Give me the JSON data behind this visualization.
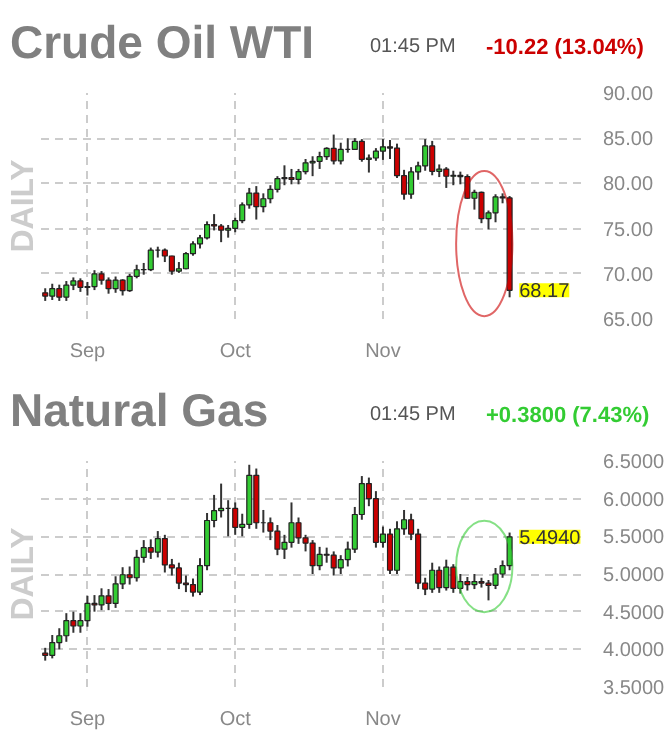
{
  "chart_data": [
    {
      "type": "candlestick",
      "title": "Crude Oil WTI",
      "ylabel": "DAILY",
      "annotations": [
        "01:45 PM",
        "-10.22 (13.04%)",
        "68.17"
      ],
      "categories": [
        null,
        null,
        null,
        null,
        null,
        null,
        "Sep",
        null,
        null,
        null,
        null,
        null,
        null,
        null,
        null,
        null,
        null,
        null,
        null,
        null,
        null,
        null,
        null,
        null,
        null,
        null,
        null,
        "Oct",
        null,
        null,
        null,
        null,
        null,
        null,
        null,
        null,
        null,
        null,
        null,
        null,
        null,
        null,
        null,
        null,
        null,
        null,
        null,
        null,
        "Nov",
        null,
        null,
        null,
        null,
        null,
        null,
        null,
        null,
        null,
        null,
        null,
        null,
        null,
        null,
        null,
        null,
        null,
        null
      ],
      "ohlc": [
        [
          67.9,
          68.4,
          67.0,
          67.54
        ],
        [
          67.54,
          68.9,
          67.1,
          68.36
        ],
        [
          68.36,
          68.8,
          67.0,
          67.42
        ],
        [
          67.42,
          69.2,
          67.0,
          68.74
        ],
        [
          68.74,
          69.6,
          68.2,
          69.21
        ],
        [
          69.21,
          69.5,
          68.0,
          68.5
        ],
        [
          68.5,
          69.1,
          67.6,
          68.59
        ],
        [
          68.59,
          70.4,
          68.2,
          69.99
        ],
        [
          69.99,
          70.3,
          68.8,
          69.29
        ],
        [
          69.29,
          69.6,
          67.8,
          68.35
        ],
        [
          68.35,
          69.7,
          67.9,
          69.3
        ],
        [
          69.3,
          69.4,
          67.6,
          68.14
        ],
        [
          68.14,
          70.0,
          68.0,
          69.72
        ],
        [
          69.72,
          71.0,
          69.5,
          70.45
        ],
        [
          70.45,
          71.2,
          69.9,
          70.46
        ],
        [
          70.46,
          72.9,
          70.3,
          72.61
        ],
        [
          72.61,
          73.0,
          71.8,
          72.61
        ],
        [
          72.61,
          72.8,
          71.3,
          71.97
        ],
        [
          71.97,
          72.0,
          69.9,
          70.29
        ],
        [
          70.29,
          71.3,
          70.1,
          70.56
        ],
        [
          70.56,
          72.4,
          70.5,
          72.23
        ],
        [
          72.23,
          73.6,
          72.0,
          73.3
        ],
        [
          73.3,
          74.3,
          72.8,
          73.98
        ],
        [
          73.98,
          75.8,
          73.8,
          75.45
        ],
        [
          75.45,
          76.6,
          74.8,
          75.29
        ],
        [
          75.29,
          75.5,
          73.5,
          74.83
        ],
        [
          74.83,
          75.4,
          74.0,
          75.03
        ],
        [
          75.03,
          76.2,
          74.6,
          75.88
        ],
        [
          75.88,
          77.9,
          75.6,
          77.62
        ],
        [
          77.62,
          79.5,
          77.2,
          78.93
        ],
        [
          78.93,
          79.7,
          76.0,
          77.43
        ],
        [
          77.43,
          78.9,
          76.8,
          78.3
        ],
        [
          78.3,
          79.8,
          77.8,
          79.35
        ],
        [
          79.35,
          80.8,
          79.0,
          80.52
        ],
        [
          80.52,
          82.0,
          79.8,
          80.64
        ],
        [
          80.64,
          81.6,
          79.9,
          80.44
        ],
        [
          80.44,
          81.6,
          79.9,
          81.31
        ],
        [
          81.31,
          82.7,
          81.0,
          82.28
        ],
        [
          82.28,
          83.0,
          80.8,
          82.44
        ],
        [
          82.44,
          83.5,
          81.6,
          82.96
        ],
        [
          82.96,
          84.0,
          82.6,
          83.87
        ],
        [
          83.87,
          85.4,
          82.1,
          82.5
        ],
        [
          82.5,
          84.5,
          82.1,
          83.76
        ],
        [
          83.76,
          85.0,
          83.4,
          83.76
        ],
        [
          83.76,
          85.0,
          83.7,
          84.65
        ],
        [
          84.65,
          84.9,
          82.4,
          82.66
        ],
        [
          82.66,
          83.2,
          81.2,
          82.81
        ],
        [
          82.81,
          83.9,
          82.5,
          83.57
        ],
        [
          83.57,
          84.9,
          82.6,
          84.05
        ],
        [
          84.05,
          84.8,
          82.7,
          83.91
        ],
        [
          83.91,
          84.4,
          80.6,
          80.86
        ],
        [
          80.86,
          81.5,
          78.2,
          78.81
        ],
        [
          78.81,
          81.8,
          78.3,
          81.27
        ],
        [
          81.27,
          82.4,
          80.4,
          81.93
        ],
        [
          81.93,
          84.9,
          81.4,
          84.15
        ],
        [
          84.15,
          84.7,
          80.9,
          81.34
        ],
        [
          81.34,
          82.1,
          80.7,
          81.59
        ],
        [
          81.59,
          81.8,
          79.5,
          80.79
        ],
        [
          80.79,
          81.4,
          79.8,
          80.88
        ],
        [
          80.88,
          81.3,
          79.9,
          80.76
        ],
        [
          80.76,
          81.0,
          78.3,
          78.36
        ],
        [
          78.36,
          79.3,
          77.1,
          79.01
        ],
        [
          79.01,
          79.1,
          75.6,
          76.1
        ],
        [
          76.1,
          77.0,
          74.9,
          76.75
        ],
        [
          76.75,
          78.8,
          75.7,
          78.5
        ],
        [
          78.5,
          78.9,
          77.8,
          78.39
        ],
        [
          78.39,
          78.6,
          67.4,
          68.17
        ]
      ],
      "ylim": [
        65,
        90
      ],
      "yticks": [
        {
          "value": 65,
          "label": "65.00"
        },
        {
          "value": 70,
          "label": "70.00"
        },
        {
          "value": 75,
          "label": "75.00"
        },
        {
          "value": 80,
          "label": "80.00"
        },
        {
          "value": 85,
          "label": "85.00"
        },
        {
          "value": 90,
          "label": "90.00"
        }
      ],
      "grid": true
    },
    {
      "type": "candlestick",
      "title": "Natural Gas",
      "ylabel": "DAILY",
      "annotations": [
        "01:45 PM",
        "+0.3800 (7.43%)",
        "5.4940"
      ],
      "categories": [
        null,
        null,
        null,
        null,
        null,
        null,
        "Sep",
        null,
        null,
        null,
        null,
        null,
        null,
        null,
        null,
        null,
        null,
        null,
        null,
        null,
        null,
        null,
        null,
        null,
        null,
        null,
        null,
        "Oct",
        null,
        null,
        null,
        null,
        null,
        null,
        null,
        null,
        null,
        null,
        null,
        null,
        null,
        null,
        null,
        null,
        null,
        null,
        null,
        null,
        "Nov",
        null,
        null,
        null,
        null,
        null,
        null,
        null,
        null,
        null,
        null,
        null,
        null,
        null,
        null,
        null,
        null,
        null,
        null
      ],
      "ohlc": [
        [
          3.95,
          4.02,
          3.85,
          3.92
        ],
        [
          3.92,
          4.19,
          3.88,
          4.09
        ],
        [
          4.09,
          4.28,
          4.0,
          4.18
        ],
        [
          4.18,
          4.48,
          4.1,
          4.38
        ],
        [
          4.38,
          4.5,
          4.22,
          4.31
        ],
        [
          4.31,
          4.48,
          4.22,
          4.38
        ],
        [
          4.38,
          4.71,
          4.3,
          4.61
        ],
        [
          4.61,
          4.72,
          4.5,
          4.59
        ],
        [
          4.59,
          4.81,
          4.52,
          4.71
        ],
        [
          4.71,
          4.8,
          4.52,
          4.61
        ],
        [
          4.61,
          4.97,
          4.55,
          4.87
        ],
        [
          4.87,
          5.09,
          4.8,
          4.99
        ],
        [
          4.99,
          5.1,
          4.86,
          4.95
        ],
        [
          4.95,
          5.32,
          4.9,
          5.22
        ],
        [
          5.22,
          5.45,
          5.15,
          5.35
        ],
        [
          5.35,
          5.46,
          5.2,
          5.29
        ],
        [
          5.29,
          5.57,
          5.22,
          5.47
        ],
        [
          5.47,
          5.52,
          5.02,
          5.12
        ],
        [
          5.12,
          5.2,
          4.98,
          5.08
        ],
        [
          5.08,
          5.15,
          4.8,
          4.88
        ],
        [
          4.88,
          4.98,
          4.76,
          4.86
        ],
        [
          4.86,
          4.94,
          4.7,
          4.76
        ],
        [
          4.76,
          5.21,
          4.72,
          5.11
        ],
        [
          5.11,
          5.81,
          5.05,
          5.71
        ],
        [
          5.71,
          6.05,
          5.62,
          5.84
        ],
        [
          5.84,
          6.2,
          5.75,
          5.87
        ],
        [
          5.87,
          5.98,
          5.5,
          5.87
        ],
        [
          5.87,
          5.95,
          5.52,
          5.62
        ],
        [
          5.62,
          5.8,
          5.5,
          5.66
        ],
        [
          5.66,
          6.45,
          5.6,
          6.31
        ],
        [
          6.31,
          6.4,
          5.6,
          5.68
        ],
        [
          5.68,
          5.85,
          5.55,
          5.68
        ],
        [
          5.68,
          5.75,
          5.45,
          5.57
        ],
        [
          5.57,
          5.65,
          5.25,
          5.33
        ],
        [
          5.33,
          5.52,
          5.2,
          5.42
        ],
        [
          5.42,
          5.95,
          5.35,
          5.68
        ],
        [
          5.68,
          5.75,
          5.4,
          5.48
        ],
        [
          5.48,
          5.52,
          5.3,
          5.41
        ],
        [
          5.41,
          5.45,
          5.0,
          5.11
        ],
        [
          5.11,
          5.36,
          5.05,
          5.26
        ],
        [
          5.26,
          5.35,
          5.15,
          5.25
        ],
        [
          5.25,
          5.3,
          4.98,
          5.08
        ],
        [
          5.08,
          5.25,
          5.0,
          5.19
        ],
        [
          5.19,
          5.43,
          5.1,
          5.33
        ],
        [
          5.33,
          5.89,
          5.28,
          5.79
        ],
        [
          5.79,
          6.3,
          5.72,
          6.2
        ],
        [
          6.2,
          6.28,
          5.9,
          6.0
        ],
        [
          6.0,
          6.1,
          5.35,
          5.42
        ],
        [
          5.42,
          5.63,
          5.35,
          5.53
        ],
        [
          5.53,
          5.6,
          5.0,
          5.05
        ],
        [
          5.05,
          5.7,
          5.0,
          5.6
        ],
        [
          5.6,
          5.85,
          5.52,
          5.72
        ],
        [
          5.72,
          5.8,
          5.45,
          5.53
        ],
        [
          5.53,
          5.6,
          4.8,
          4.88
        ],
        [
          4.88,
          4.95,
          4.72,
          4.8
        ],
        [
          4.8,
          5.15,
          4.75,
          5.05
        ],
        [
          5.05,
          5.1,
          4.75,
          4.82
        ],
        [
          4.82,
          5.19,
          4.78,
          5.09
        ],
        [
          5.09,
          5.13,
          4.75,
          4.81
        ],
        [
          4.81,
          5.0,
          4.74,
          4.9
        ],
        [
          4.9,
          4.96,
          4.78,
          4.86
        ],
        [
          4.86,
          5.0,
          4.8,
          4.9
        ],
        [
          4.9,
          4.95,
          4.82,
          4.88
        ],
        [
          4.88,
          4.92,
          4.65,
          4.85
        ],
        [
          4.85,
          5.08,
          4.8,
          5.0
        ],
        [
          5.0,
          5.18,
          4.95,
          5.11
        ],
        [
          5.11,
          5.55,
          5.05,
          5.494
        ]
      ],
      "ylim": [
        3.5,
        6.5
      ],
      "yticks": [
        {
          "value": 3.5,
          "label": "3.5000"
        },
        {
          "value": 4.0,
          "label": "4.0000"
        },
        {
          "value": 4.5,
          "label": "4.5000"
        },
        {
          "value": 5.0,
          "label": "5.0000"
        },
        {
          "value": 5.5,
          "label": "5.5000"
        },
        {
          "value": 6.0,
          "label": "6.0000"
        },
        {
          "value": 6.5,
          "label": "6.5000"
        }
      ],
      "grid": true
    }
  ]
}
